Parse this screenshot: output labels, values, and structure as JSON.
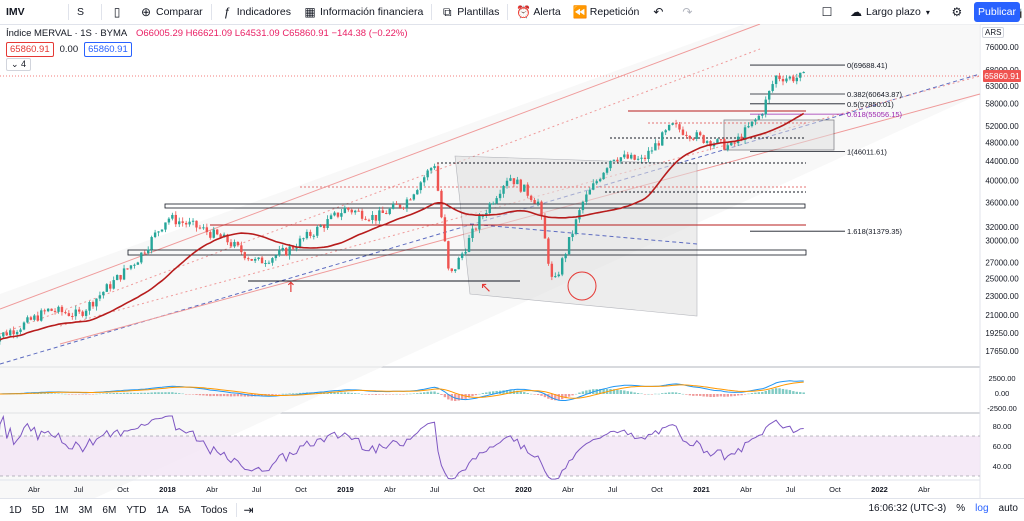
{
  "toolbar": {
    "symbol": "IMV",
    "interval": "S",
    "compare": "Comparar",
    "indicators": "Indicadores",
    "financials": "Información financiera",
    "templates": "Plantillas",
    "alert": "Alerta",
    "replay": "Repetición",
    "layout_name": "Largo plazo",
    "publish": "Publicar"
  },
  "legend": {
    "title": "Índice MERVAL · 1S · BYMA",
    "ohlc": "O66005.29 H66621.09 L64531.09 C65860.91 −144.38 (−0.22%)",
    "price_sell": "65860.91",
    "spread": "0.00",
    "price_buy": "65860.91",
    "collapse": "4"
  },
  "currency": "ARS",
  "colors": {
    "up": "#26a69a",
    "down": "#ef5350",
    "ma": "#b71c1c",
    "fib_golden": "#9c27b0",
    "macd": "#2196f3",
    "signal": "#ff9800",
    "rsi": "#7e57c2",
    "accent": "#2962ff"
  },
  "bottom": {
    "ranges": [
      "1D",
      "5D",
      "1M",
      "3M",
      "6M",
      "YTD",
      "1A",
      "5A",
      "Todos"
    ],
    "time": "16:06:32 (UTC-3)",
    "pct": "%",
    "log": "log",
    "auto": "auto"
  },
  "chart_data": {
    "type": "candlestick",
    "title": "Índice MERVAL",
    "last_price": 65860.91,
    "y_scale": "log",
    "y_ticks": [
      17650,
      19250,
      21000,
      23000,
      25000,
      27000,
      30000,
      32000,
      36000,
      40000,
      44000,
      48000,
      52000,
      58000,
      63000,
      68000,
      76000
    ],
    "x_ticks": [
      "Abr",
      "Jul",
      "Oct",
      "2018",
      "Abr",
      "Jul",
      "Oct",
      "2019",
      "Abr",
      "Jul",
      "Oct",
      "2020",
      "Abr",
      "Jul",
      "Oct",
      "2021",
      "Abr",
      "Jul",
      "Oct",
      "2022",
      "Abr"
    ],
    "fibonacci": [
      {
        "label": "0(69688.41)",
        "value": 69688.41
      },
      {
        "label": "0.382(60643.87)",
        "value": 60643.87
      },
      {
        "label": "0.5(57850.01)",
        "value": 57850.01
      },
      {
        "label": "0.618(55056.15)",
        "value": 55056.15
      },
      {
        "label": "1(46011.61)",
        "value": 46011.61
      },
      {
        "label": "1.618(31379.35)",
        "value": 31379.35
      }
    ],
    "weekly_close_path": [
      [
        "2017-01",
        18600
      ],
      [
        "2017-03",
        19800
      ],
      [
        "2017-05",
        21500
      ],
      [
        "2017-07",
        21000
      ],
      [
        "2017-09",
        24000
      ],
      [
        "2017-11",
        27500
      ],
      [
        "2018-01",
        33500
      ],
      [
        "2018-03",
        32000
      ],
      [
        "2018-05",
        30000
      ],
      [
        "2018-07",
        27000
      ],
      [
        "2018-09",
        28500
      ],
      [
        "2018-11",
        31500
      ],
      [
        "2019-01",
        35000
      ],
      [
        "2019-03",
        33500
      ],
      [
        "2019-05",
        36000
      ],
      [
        "2019-07",
        43500
      ],
      [
        "2019-08",
        25000
      ],
      [
        "2019-10",
        33000
      ],
      [
        "2019-12",
        41000
      ],
      [
        "2020-02",
        36000
      ],
      [
        "2020-03",
        24000
      ],
      [
        "2020-05",
        36000
      ],
      [
        "2020-07",
        45000
      ],
      [
        "2020-09",
        44000
      ],
      [
        "2020-11",
        52000
      ],
      [
        "2021-01",
        49000
      ],
      [
        "2021-03",
        47000
      ],
      [
        "2021-05",
        55000
      ],
      [
        "2021-06",
        66000
      ],
      [
        "2021-07",
        65500
      ],
      [
        "2021-08",
        65860
      ]
    ],
    "macd": {
      "ticks": [
        2500,
        0,
        -2500
      ]
    },
    "rsi": {
      "ticks": [
        80,
        60,
        40
      ],
      "overbought": 70,
      "oversold": 30
    }
  }
}
